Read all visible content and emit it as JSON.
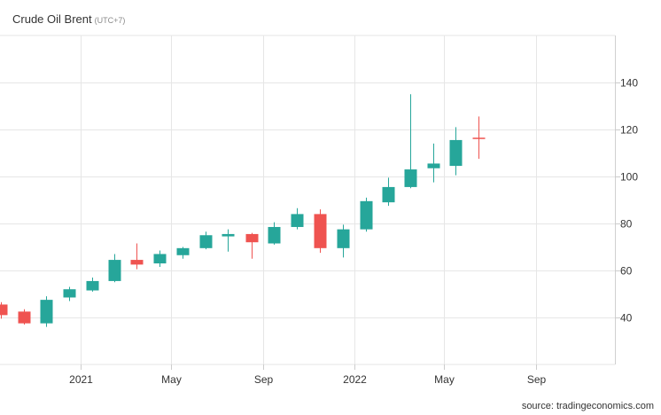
{
  "header": {
    "title": "Crude Oil Brent",
    "subtitle": "(UTC+7)"
  },
  "footer": {
    "source": "source: tradingeconomics.com"
  },
  "colors": {
    "up": "#26a69a",
    "down": "#ef5350",
    "grid": "#e6e6e6",
    "text": "#333333"
  },
  "chart_data": {
    "type": "candlestick",
    "title": "Crude Oil Brent",
    "subtitle": "(UTC+7)",
    "ylim": [
      20,
      160
    ],
    "yticks": [
      40,
      60,
      80,
      100,
      120,
      140
    ],
    "xlim": [
      "2020-09-15",
      "2022-12-15"
    ],
    "xticks": [
      {
        "label": "2021",
        "date": "2021-01-01"
      },
      {
        "label": "May",
        "date": "2021-05-01"
      },
      {
        "label": "Sep",
        "date": "2021-09-01"
      },
      {
        "label": "2022",
        "date": "2022-01-01"
      },
      {
        "label": "May",
        "date": "2022-05-01"
      },
      {
        "label": "Sep",
        "date": "2022-09-01"
      }
    ],
    "grid": true,
    "y_axis_side": "right",
    "candles": [
      {
        "date": "2020-09-01",
        "open": 45.5,
        "high": 46.5,
        "low": 39.5,
        "close": 41.0
      },
      {
        "date": "2020-10-01",
        "open": 42.5,
        "high": 43.5,
        "low": 37.0,
        "close": 37.5
      },
      {
        "date": "2020-11-01",
        "open": 37.5,
        "high": 49.0,
        "low": 36.0,
        "close": 47.5
      },
      {
        "date": "2020-12-01",
        "open": 48.5,
        "high": 53.0,
        "low": 47.0,
        "close": 52.0
      },
      {
        "date": "2021-01-01",
        "open": 51.5,
        "high": 57.0,
        "low": 51.0,
        "close": 55.5
      },
      {
        "date": "2021-02-01",
        "open": 55.5,
        "high": 67.0,
        "low": 55.0,
        "close": 64.5
      },
      {
        "date": "2021-03-01",
        "open": 64.5,
        "high": 71.5,
        "low": 60.5,
        "close": 62.5
      },
      {
        "date": "2021-04-01",
        "open": 63.0,
        "high": 68.5,
        "low": 61.5,
        "close": 67.0
      },
      {
        "date": "2021-05-01",
        "open": 66.5,
        "high": 70.0,
        "low": 65.0,
        "close": 69.5
      },
      {
        "date": "2021-06-01",
        "open": 69.5,
        "high": 76.5,
        "low": 69.0,
        "close": 75.0
      },
      {
        "date": "2021-07-01",
        "open": 74.5,
        "high": 77.5,
        "low": 68.0,
        "close": 75.5
      },
      {
        "date": "2021-08-01",
        "open": 75.5,
        "high": 76.0,
        "low": 65.0,
        "close": 72.0
      },
      {
        "date": "2021-09-01",
        "open": 71.5,
        "high": 80.5,
        "low": 71.0,
        "close": 78.5
      },
      {
        "date": "2021-10-01",
        "open": 78.5,
        "high": 86.5,
        "low": 77.5,
        "close": 84.0
      },
      {
        "date": "2021-11-01",
        "open": 84.0,
        "high": 86.0,
        "low": 67.5,
        "close": 69.5
      },
      {
        "date": "2021-12-01",
        "open": 69.5,
        "high": 79.5,
        "low": 65.5,
        "close": 77.5
      },
      {
        "date": "2022-01-01",
        "open": 77.5,
        "high": 91.0,
        "low": 76.5,
        "close": 89.5
      },
      {
        "date": "2022-02-01",
        "open": 89.0,
        "high": 99.5,
        "low": 87.5,
        "close": 95.5
      },
      {
        "date": "2022-03-01",
        "open": 95.5,
        "high": 135.0,
        "low": 95.0,
        "close": 103.0
      },
      {
        "date": "2022-04-01",
        "open": 103.5,
        "high": 114.0,
        "low": 97.5,
        "close": 105.5
      },
      {
        "date": "2022-05-01",
        "open": 104.5,
        "high": 121.0,
        "low": 100.5,
        "close": 115.5
      },
      {
        "date": "2022-06-01",
        "open": 116.5,
        "high": 125.5,
        "low": 107.5,
        "close": 116.0
      }
    ]
  }
}
